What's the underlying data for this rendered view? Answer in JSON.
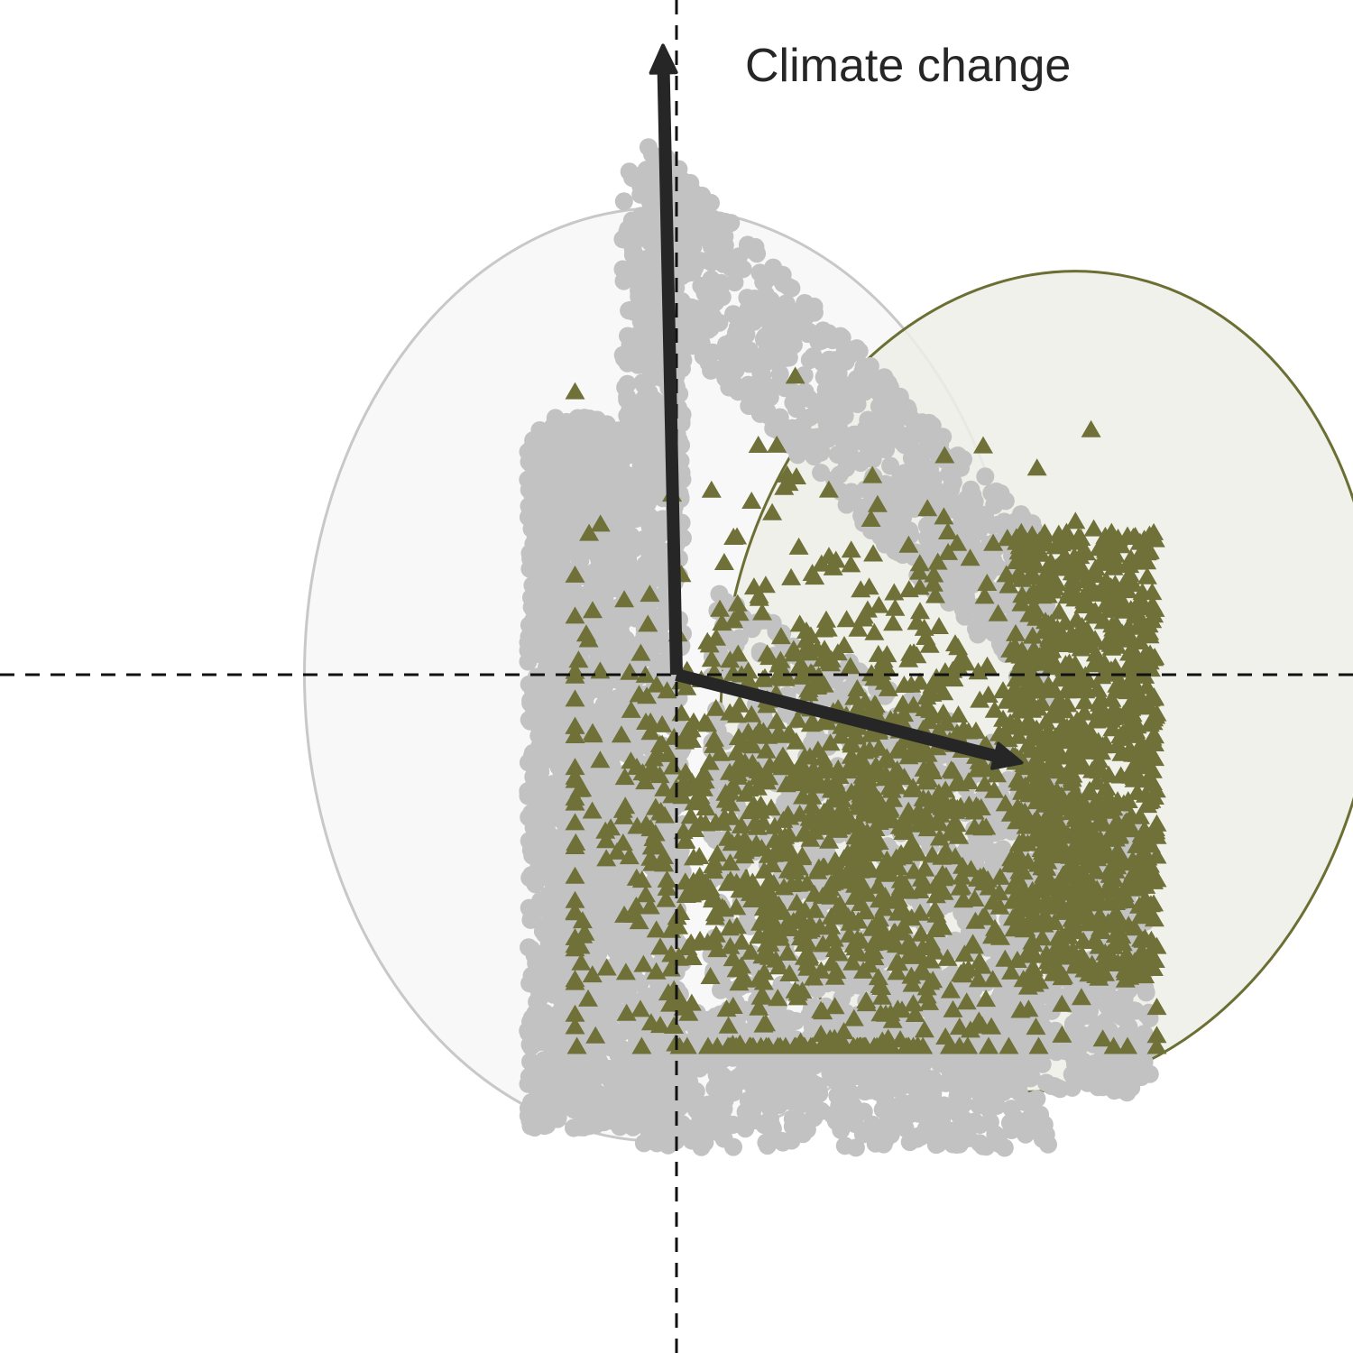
{
  "chart_data": {
    "type": "scatter",
    "title": "",
    "xlabel": "",
    "ylabel": "",
    "xlim": [
      -1,
      1
    ],
    "ylim": [
      -1,
      1
    ],
    "grid": false,
    "reference_lines": {
      "x": 0,
      "y": 0,
      "style": "dashed"
    },
    "colors": {
      "background_points": "#c2c2c2",
      "background_ellipse_stroke": "#c8c8c8",
      "background_ellipse_fill": "#f8f8f8",
      "highlight_points": "#6f7139",
      "highlight_ellipse_stroke": "#6c6f33",
      "highlight_ellipse_fill": "#eeefe7",
      "arrow": "#262626",
      "reference_line": "#111111"
    },
    "vectors": [
      {
        "label": "Climate change",
        "x": -0.02,
        "y": 0.93
      },
      {
        "label": "",
        "x": 0.51,
        "y": -0.13
      }
    ],
    "series": [
      {
        "marker": "circle",
        "color": "#c2c2c2",
        "n_approx": 6000,
        "x_range": [
          -0.23,
          0.75
        ],
        "y_range": [
          -0.71,
          0.8
        ],
        "ellipse": {
          "cx": -0.02,
          "cy": 0.0,
          "rx": 0.53,
          "ry": 0.69
        }
      },
      {
        "marker": "triangle",
        "color": "#6f7139",
        "n_approx": 2000,
        "x_range": [
          -0.15,
          0.71
        ],
        "y_range": [
          -0.55,
          0.5
        ],
        "ellipse": {
          "cx": 0.55,
          "cy": -0.01,
          "rx": 0.48,
          "ry": 0.61,
          "rotation_deg": 10
        }
      }
    ]
  }
}
